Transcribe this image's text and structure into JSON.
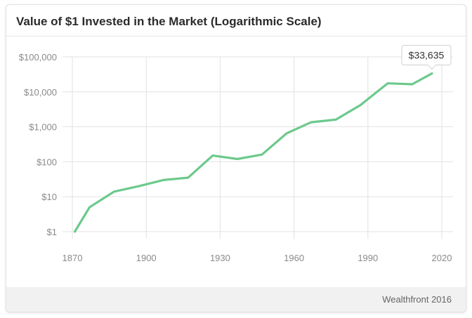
{
  "title": "Value of $1 Invested in the Market (Logarithmic Scale)",
  "source": "Wealthfront 2016",
  "chart_data": {
    "type": "line",
    "title": "Value of $1 Invested in the Market (Logarithmic Scale)",
    "xlabel": "",
    "ylabel": "",
    "yscale": "log",
    "xlim": [
      1867,
      2021
    ],
    "ylim": [
      0.6,
      100000
    ],
    "x_ticks": [
      1870,
      1900,
      1930,
      1960,
      1990,
      2020
    ],
    "x_tick_labels": [
      "1870",
      "1900",
      "1930",
      "1960",
      "1990",
      "2020"
    ],
    "y_ticks": [
      1,
      10,
      100,
      1000,
      10000,
      100000
    ],
    "y_tick_labels": [
      "$1",
      "$10",
      "$100",
      "$1,000",
      "$10,000",
      "$100,000"
    ],
    "grid": true,
    "color": "#6cc98c",
    "series": [
      {
        "x": [
          1871,
          1877,
          1887,
          1897,
          1907,
          1917,
          1927,
          1937,
          1947,
          1957,
          1967,
          1977,
          1987,
          1998,
          2008,
          2016
        ],
        "y": [
          1,
          5,
          14,
          20,
          30,
          35,
          150,
          120,
          160,
          650,
          1350,
          1600,
          4200,
          17500,
          16500,
          33635
        ]
      }
    ],
    "annotation": {
      "text": "$33,635",
      "x": 2016,
      "y": 33635
    }
  }
}
